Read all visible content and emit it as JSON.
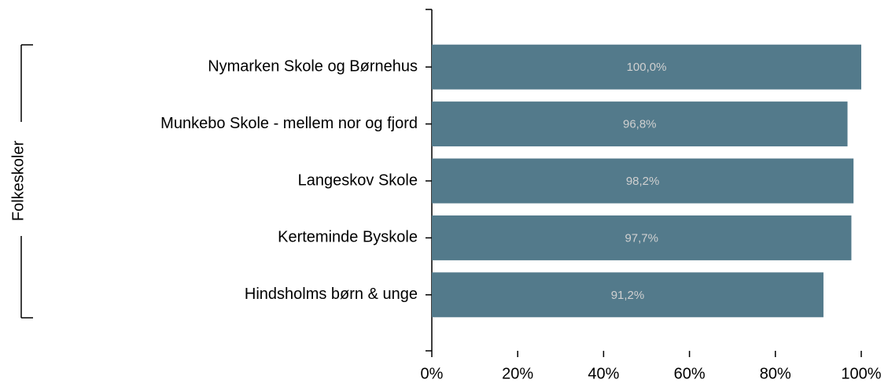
{
  "chart_data": {
    "type": "bar",
    "orientation": "horizontal",
    "group_label": "Folkeskoler",
    "categories": [
      "Nymarken Skole og Børnehus",
      "Munkebo Skole - mellem nor og fjord",
      "Langeskov Skole",
      "Kerteminde Byskole",
      "Hindsholms børn & unge"
    ],
    "values": [
      100.0,
      96.8,
      98.2,
      97.7,
      91.2
    ],
    "value_labels": [
      "100,0%",
      "96,8%",
      "98,2%",
      "97,7%",
      "91,2%"
    ],
    "color": "#537a8b",
    "xlim": [
      0,
      100
    ],
    "xticks": [
      {
        "value": 0,
        "label": "0%"
      },
      {
        "value": 20,
        "label": "20%"
      },
      {
        "value": 40,
        "label": "40%"
      },
      {
        "value": 60,
        "label": "60%"
      },
      {
        "value": 80,
        "label": "80%"
      },
      {
        "value": 100,
        "label": "100%"
      }
    ]
  }
}
